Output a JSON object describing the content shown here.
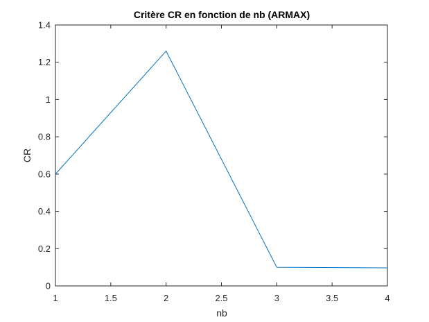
{
  "chart_data": {
    "type": "line",
    "title": "Critère CR en fonction de nb (ARMAX)",
    "xlabel": "nb",
    "ylabel": "CR",
    "xlim": [
      1,
      4
    ],
    "ylim": [
      0,
      1.4
    ],
    "xticks": [
      "1",
      "1.5",
      "2",
      "2.5",
      "3",
      "3.5",
      "4"
    ],
    "yticks": [
      "0",
      "0.2",
      "0.4",
      "0.6",
      "0.8",
      "1",
      "1.2",
      "1.4"
    ],
    "grid": false,
    "series": [
      {
        "x": [
          1,
          2,
          3,
          4
        ],
        "values": [
          0.6,
          1.26,
          0.1,
          0.097
        ],
        "color": "#0072BD"
      }
    ]
  }
}
